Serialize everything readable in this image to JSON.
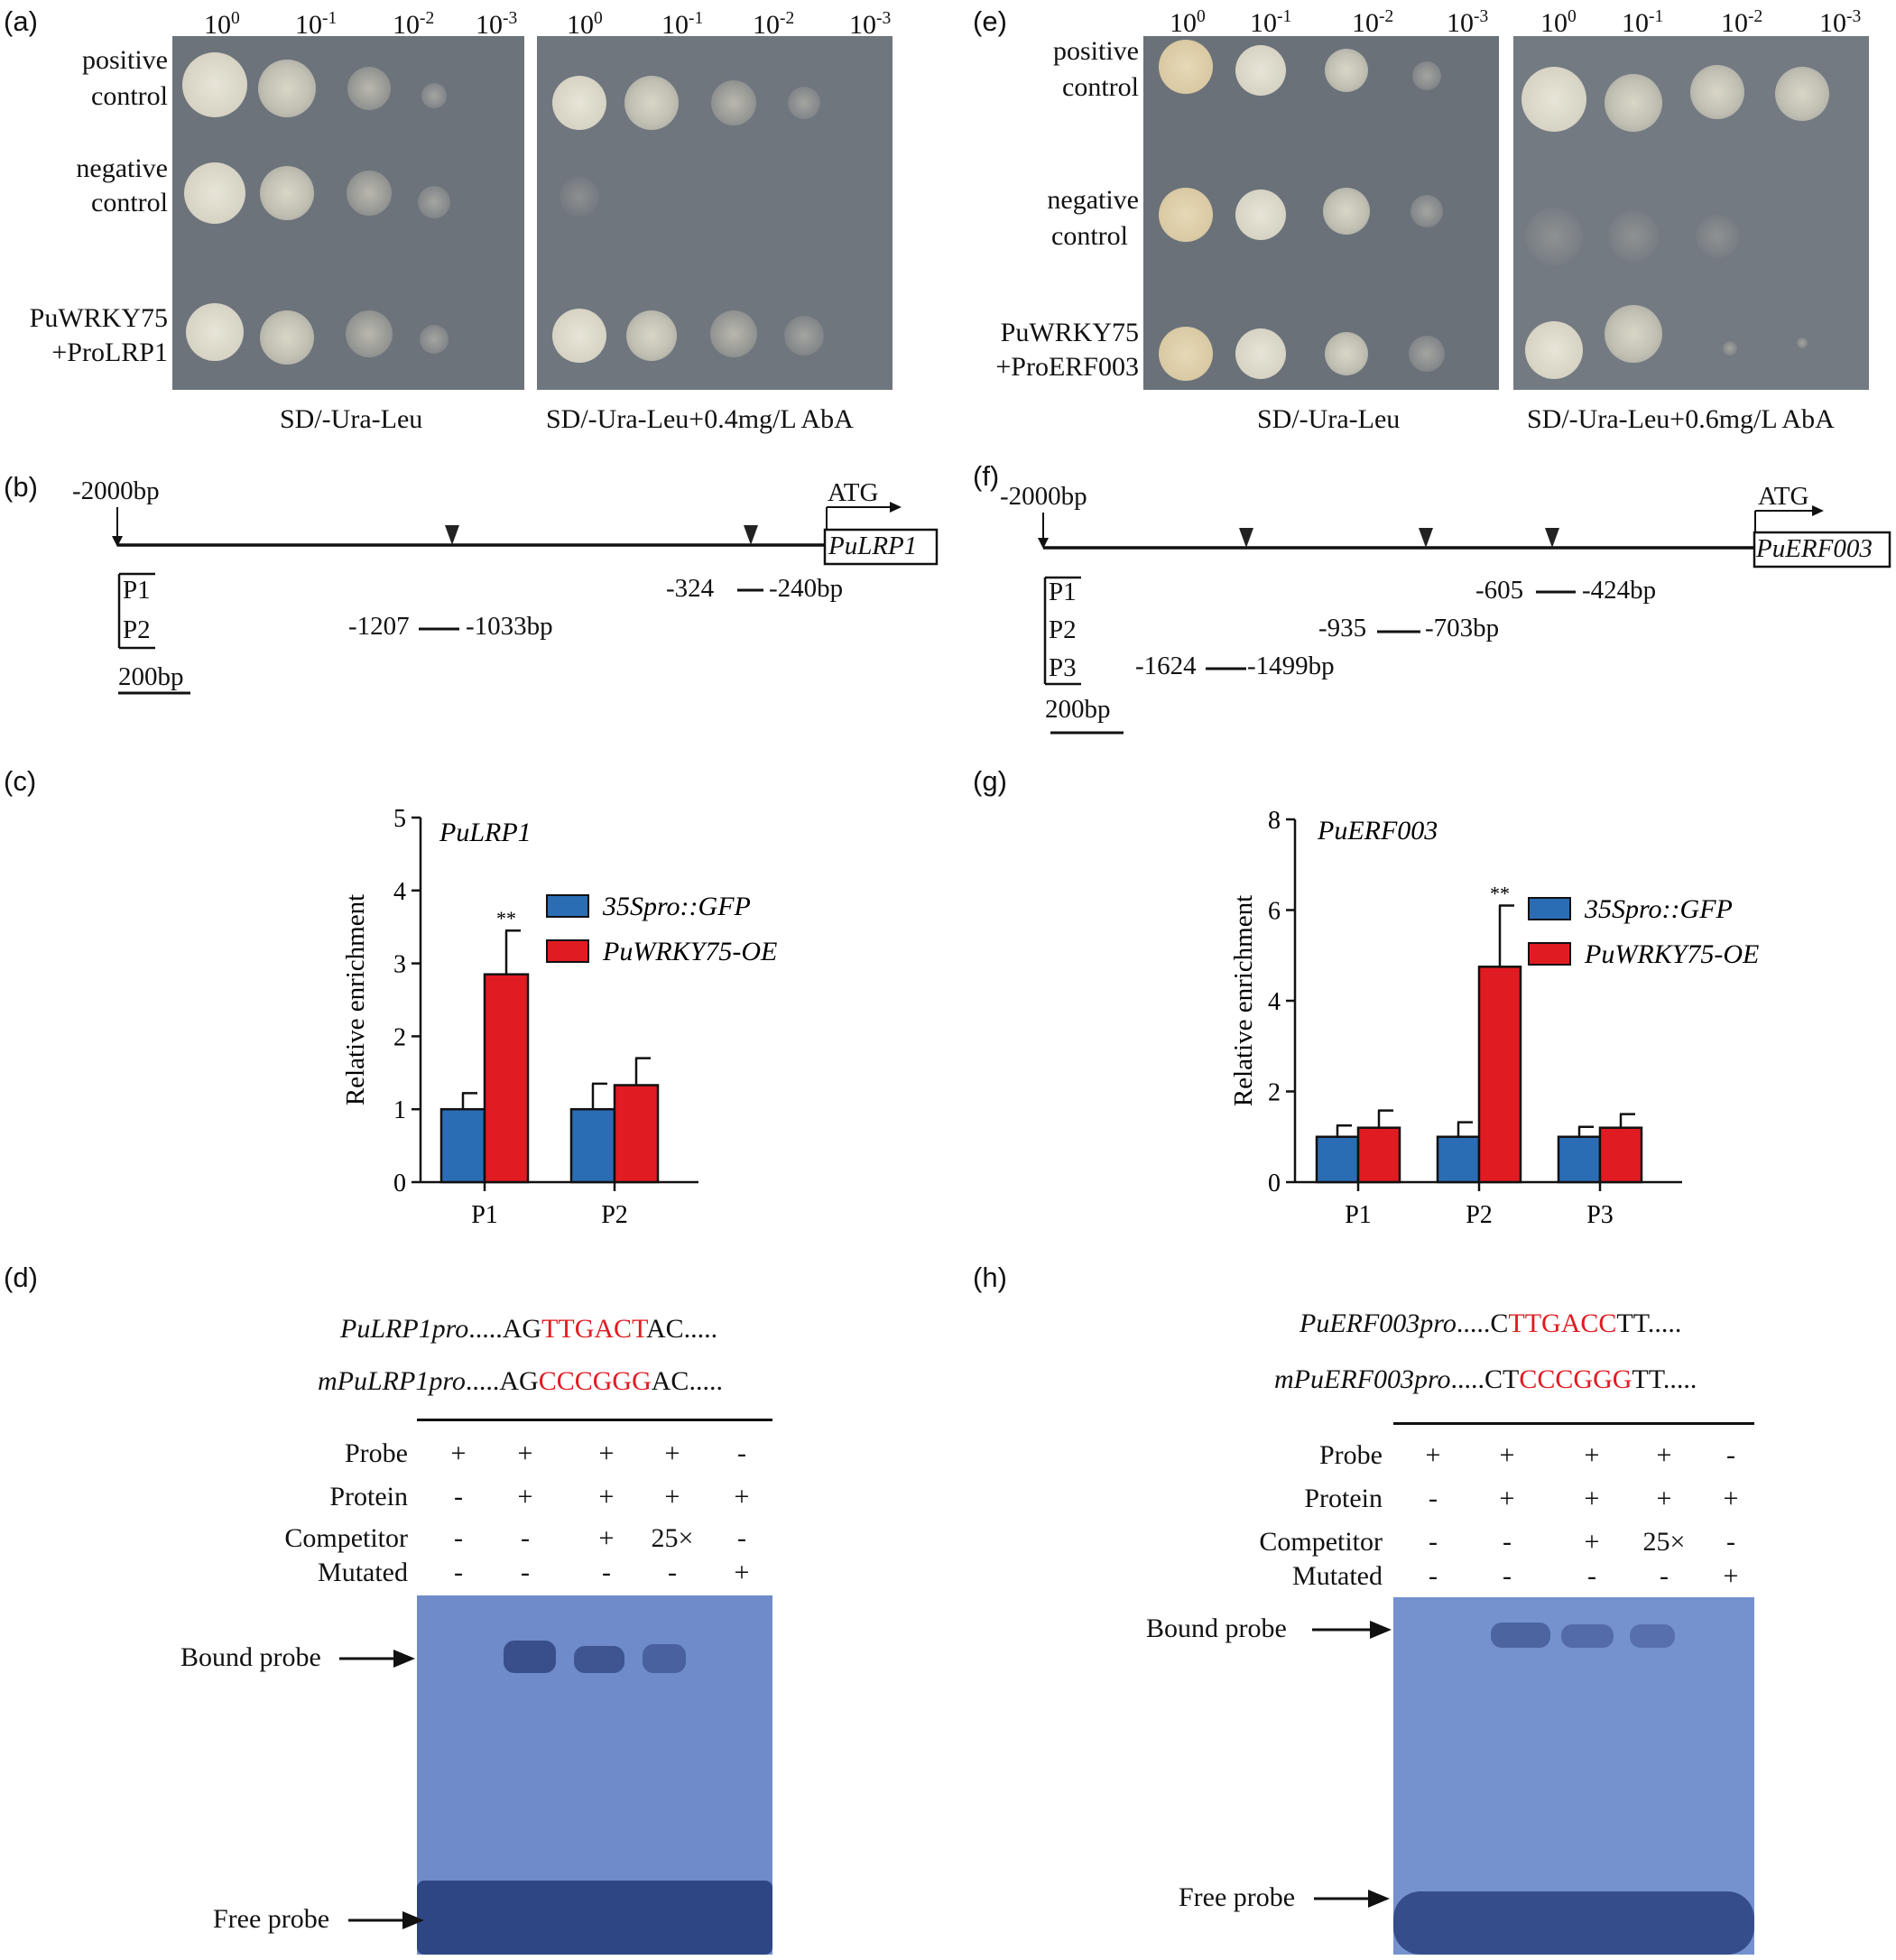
{
  "panels": {
    "a": {
      "label": "(a)",
      "dilutions": [
        "10",
        "10",
        "10",
        "10"
      ],
      "exps": [
        "0",
        "-1",
        "-2",
        "-3"
      ],
      "rows": [
        "positive",
        "control",
        "negative",
        "control",
        "PuWRKY75",
        "+ProLRP1"
      ],
      "plate1": "SD/-Ura-Leu",
      "plate2": "SD/-Ura-Leu+0.4mg/L AbA"
    },
    "e": {
      "label": "(e)",
      "dilutions": [
        "10",
        "10",
        "10",
        "10"
      ],
      "exps": [
        "0",
        "-1",
        "-2",
        "-3"
      ],
      "rows": [
        "positive",
        "control",
        "negative",
        "control",
        "PuWRKY75",
        "+ProERF003"
      ],
      "plate1": "SD/-Ura-Leu",
      "plate2": "SD/-Ura-Leu+0.6mg/L AbA"
    },
    "b": {
      "label": "(b)",
      "start": "-2000bp",
      "atg": "ATG",
      "gene": "PuLRP1",
      "probes": [
        {
          "name": "P1",
          "range_start": "-324",
          "range_end": "-240bp"
        },
        {
          "name": "P2",
          "range_start": "-1207",
          "range_end": "-1033bp"
        }
      ],
      "scale": "200bp"
    },
    "f": {
      "label": "(f)",
      "start": "-2000bp",
      "atg": "ATG",
      "gene": "PuERF003",
      "probes": [
        {
          "name": "P1",
          "range_start": "-605",
          "range_end": "-424bp"
        },
        {
          "name": "P2",
          "range_start": "-935",
          "range_end": "-703bp"
        },
        {
          "name": "P3",
          "range_start": "-1624",
          "range_end": "-1499bp"
        }
      ],
      "scale": "200bp"
    },
    "c": {
      "label": "(c)"
    },
    "g": {
      "label": "(g)"
    },
    "d": {
      "label": "(d)",
      "seq1_name": "PuLRP1pro",
      "seq1_pre": ".....AG",
      "seq1_site": "TTGACT",
      "seq1_post": "AC.....",
      "seq2_name": "mPuLRP1pro",
      "seq2_pre": ".....AG",
      "seq2_site": "CCCGGG",
      "seq2_post": "AC.....",
      "rows": [
        {
          "name": "Probe",
          "vals": [
            "+",
            "+",
            "+",
            "+",
            "-"
          ]
        },
        {
          "name": "Protein",
          "vals": [
            "-",
            "+",
            "+",
            "+",
            "+"
          ]
        },
        {
          "name": "Competitor",
          "vals": [
            "-",
            "-",
            "+",
            "25×",
            "-"
          ]
        },
        {
          "name": "Mutated",
          "vals": [
            "-",
            "-",
            "-",
            "-",
            "+"
          ]
        }
      ],
      "bound": "Bound probe",
      "free": "Free probe"
    },
    "h": {
      "label": "(h)",
      "seq1_name": "PuERF003pro",
      "seq1_pre": ".....C",
      "seq1_site": "TTGACC",
      "seq1_post": "TT.....",
      "seq2_name": "mPuERF003pro",
      "seq2_pre": ".....CT",
      "seq2_site": "CCCGGG",
      "seq2_post": "TT.....",
      "rows": [
        {
          "name": "Probe",
          "vals": [
            "+",
            "+",
            "+",
            "+",
            "-"
          ]
        },
        {
          "name": "Protein",
          "vals": [
            "-",
            "+",
            "+",
            "+",
            "+"
          ]
        },
        {
          "name": "Competitor",
          "vals": [
            "-",
            "-",
            "+",
            "25×",
            "-"
          ]
        },
        {
          "name": "Mutated",
          "vals": [
            "-",
            "-",
            "-",
            "-",
            "+"
          ]
        }
      ],
      "bound": "Bound probe",
      "free": "Free probe"
    }
  },
  "colors": {
    "control": "#2a6db5",
    "oe": "#e11b22",
    "plate": "#6c727a",
    "gel": "#6f8ccb"
  },
  "chart_data": [
    {
      "type": "bar",
      "title": "PuLRP1",
      "ylabel": "Relative enrichment",
      "xlabel": "",
      "categories": [
        "P1",
        "P2"
      ],
      "ylim": [
        0,
        5
      ],
      "yticks": [
        0,
        1,
        2,
        3,
        4,
        5
      ],
      "series": [
        {
          "name": "35Spro::GFP",
          "values": [
            1.0,
            1.0
          ],
          "errors": [
            0.22,
            0.35
          ]
        },
        {
          "name": "PuWRKY75-OE",
          "values": [
            2.85,
            1.33
          ],
          "errors": [
            0.6,
            0.37
          ]
        }
      ],
      "annotations": [
        {
          "category": "P1",
          "text": "**"
        }
      ],
      "legend": "top-right"
    },
    {
      "type": "bar",
      "title": "PuERF003",
      "ylabel": "Relative enrichment",
      "xlabel": "",
      "categories": [
        "P1",
        "P2",
        "P3"
      ],
      "ylim": [
        0,
        8
      ],
      "yticks": [
        0,
        2,
        4,
        6,
        8
      ],
      "series": [
        {
          "name": "35Spro::GFP",
          "values": [
            1.0,
            1.0,
            1.0
          ],
          "errors": [
            0.25,
            0.32,
            0.22
          ]
        },
        {
          "name": "PuWRKY75-OE",
          "values": [
            1.2,
            4.75,
            1.2
          ],
          "errors": [
            0.38,
            1.35,
            0.3
          ]
        }
      ],
      "annotations": [
        {
          "category": "P2",
          "text": "**"
        }
      ],
      "legend": "top-right"
    }
  ]
}
